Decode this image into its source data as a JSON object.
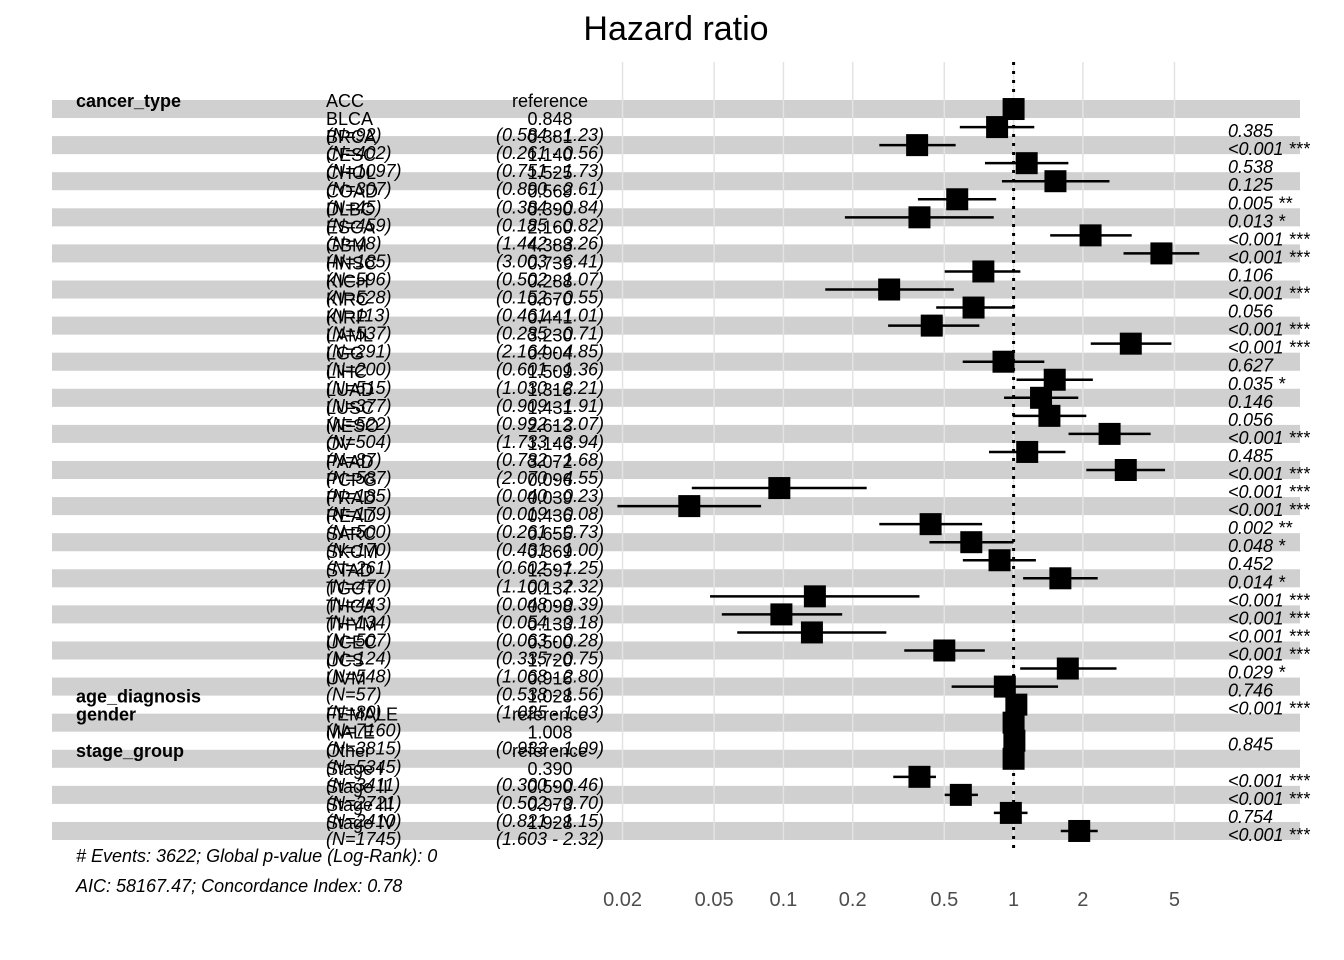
{
  "chart_data": {
    "type": "forest",
    "title": "Hazard ratio",
    "x_scale": "log",
    "xlim": [
      0.018,
      7.5
    ],
    "x_ticks": [
      "0.02",
      "0.05",
      "0.1",
      "0.2",
      "0.5",
      "1",
      "2",
      "5"
    ],
    "reference_line": 1,
    "footer": [
      "# Events: 3622; Global p-value (Log-Rank): 0",
      "AIC: 58167.47; Concordance Index: 0.78"
    ],
    "rows": [
      {
        "variable": "cancer_type",
        "level": "ACC",
        "n": "",
        "hr": null,
        "estimate": "reference",
        "ci": "",
        "lo": null,
        "hi": null,
        "p": "",
        "sig": ""
      },
      {
        "variable": "",
        "level": "BLCA",
        "n": "(N=92)",
        "hr": 0.848,
        "estimate": "0.848",
        "ci": "(0.584 - 1.23)",
        "lo": 0.584,
        "hi": 1.23,
        "p": "0.385",
        "sig": ""
      },
      {
        "variable": "",
        "level": "BRCA",
        "n": "(N=402)",
        "hr": 0.381,
        "estimate": "0.381",
        "ci": "(0.261 - 0.56)",
        "lo": 0.261,
        "hi": 0.56,
        "p": "<0.001",
        "sig": "***"
      },
      {
        "variable": "",
        "level": "CESC",
        "n": "(N=1097)",
        "hr": 1.14,
        "estimate": "1.140",
        "ci": "(0.751 - 1.73)",
        "lo": 0.751,
        "hi": 1.73,
        "p": "0.538",
        "sig": ""
      },
      {
        "variable": "",
        "level": "CHOL",
        "n": "(N=307)",
        "hr": 1.52,
        "estimate": "1.525",
        "ci": "(0.890 - 2.61)",
        "lo": 0.89,
        "hi": 2.61,
        "p": "0.125",
        "sig": ""
      },
      {
        "variable": "",
        "level": "COAD",
        "n": "(N=45)",
        "hr": 0.569,
        "estimate": "0.569",
        "ci": "(0.384 - 0.84)",
        "lo": 0.384,
        "hi": 0.84,
        "p": "0.005",
        "sig": "**"
      },
      {
        "variable": "",
        "level": "DLBC",
        "n": "(N=459)",
        "hr": 0.39,
        "estimate": "0.390",
        "ci": "(0.185 - 0.82)",
        "lo": 0.185,
        "hi": 0.82,
        "p": "0.013",
        "sig": "*"
      },
      {
        "variable": "",
        "level": "ESCA",
        "n": "(N=48)",
        "hr": 2.16,
        "estimate": "2.160",
        "ci": "(1.442 - 3.26)",
        "lo": 1.442,
        "hi": 3.26,
        "p": "<0.001",
        "sig": "***"
      },
      {
        "variable": "",
        "level": "GBM",
        "n": "(N=185)",
        "hr": 4.388,
        "estimate": "4.388",
        "ci": "(3.003 - 6.41)",
        "lo": 3.003,
        "hi": 6.41,
        "p": "<0.001",
        "sig": "***"
      },
      {
        "variable": "",
        "level": "HNSC",
        "n": "(N=596)",
        "hr": 0.739,
        "estimate": "0.739",
        "ci": "(0.502 - 1.07)",
        "lo": 0.502,
        "hi": 1.07,
        "p": "0.106",
        "sig": ""
      },
      {
        "variable": "",
        "level": "KICH",
        "n": "(N=528)",
        "hr": 0.288,
        "estimate": "0.288",
        "ci": "(0.152 - 0.55)",
        "lo": 0.152,
        "hi": 0.55,
        "p": "<0.001",
        "sig": "***"
      },
      {
        "variable": "",
        "level": "KIRC",
        "n": "(N=113)",
        "hr": 0.67,
        "estimate": "0.670",
        "ci": "(0.461 - 1.01)",
        "lo": 0.461,
        "hi": 1.01,
        "p": "0.056",
        "sig": ""
      },
      {
        "variable": "",
        "level": "KIRP",
        "n": "(N=537)",
        "hr": 0.441,
        "estimate": "0.441",
        "ci": "(0.285 - 0.71)",
        "lo": 0.285,
        "hi": 0.71,
        "p": "<0.001",
        "sig": "***"
      },
      {
        "variable": "",
        "level": "LAML",
        "n": "(N=291)",
        "hr": 3.23,
        "estimate": "3.230",
        "ci": "(2.164 - 4.85)",
        "lo": 2.164,
        "hi": 4.85,
        "p": "<0.001",
        "sig": "***"
      },
      {
        "variable": "",
        "level": "LGG",
        "n": "(N=200)",
        "hr": 0.904,
        "estimate": "0.904",
        "ci": "(0.601 - 1.36)",
        "lo": 0.601,
        "hi": 1.36,
        "p": "0.627",
        "sig": ""
      },
      {
        "variable": "",
        "level": "LIHC",
        "n": "(N=515)",
        "hr": 1.509,
        "estimate": "1.509",
        "ci": "(1.030 - 2.21)",
        "lo": 1.03,
        "hi": 2.21,
        "p": "0.035",
        "sig": "*"
      },
      {
        "variable": "",
        "level": "LUAD",
        "n": "(N=377)",
        "hr": 1.316,
        "estimate": "1.316",
        "ci": "(0.909 - 1.91)",
        "lo": 0.909,
        "hi": 1.91,
        "p": "0.146",
        "sig": ""
      },
      {
        "variable": "",
        "level": "LUSC",
        "n": "(N=522)",
        "hr": 1.431,
        "estimate": "1.431",
        "ci": "(0.992 - 2.07)",
        "lo": 0.992,
        "hi": 2.07,
        "p": "0.056",
        "sig": ""
      },
      {
        "variable": "",
        "level": "MESO",
        "n": "(N=504)",
        "hr": 2.613,
        "estimate": "2.613",
        "ci": "(1.733 - 3.94)",
        "lo": 1.733,
        "hi": 3.94,
        "p": "<0.001",
        "sig": "***"
      },
      {
        "variable": "",
        "level": "OV",
        "n": "(N=87)",
        "hr": 1.146,
        "estimate": "1.146",
        "ci": "(0.782 - 1.68)",
        "lo": 0.782,
        "hi": 1.68,
        "p": "0.485",
        "sig": ""
      },
      {
        "variable": "",
        "level": "PAAD",
        "n": "(N=587)",
        "hr": 3.072,
        "estimate": "3.072",
        "ci": "(2.070 - 4.55)",
        "lo": 2.07,
        "hi": 4.55,
        "p": "<0.001",
        "sig": "***"
      },
      {
        "variable": "",
        "level": "PCPG",
        "n": "(N=185)",
        "hr": 0.096,
        "estimate": "0.096",
        "ci": "(0.040 - 0.23)",
        "lo": 0.04,
        "hi": 0.23,
        "p": "<0.001",
        "sig": "***"
      },
      {
        "variable": "",
        "level": "PRAD",
        "n": "(N=179)",
        "hr": 0.039,
        "estimate": "0.039",
        "ci": "(0.019 - 0.08)",
        "lo": 0.019,
        "hi": 0.08,
        "p": "<0.001",
        "sig": "***"
      },
      {
        "variable": "",
        "level": "READ",
        "n": "(N=500)",
        "hr": 0.436,
        "estimate": "0.436",
        "ci": "(0.261 - 0.73)",
        "lo": 0.261,
        "hi": 0.73,
        "p": "0.002",
        "sig": "**"
      },
      {
        "variable": "",
        "level": "SARC",
        "n": "(N=170)",
        "hr": 0.655,
        "estimate": "0.655",
        "ci": "(0.431 - 1.00)",
        "lo": 0.431,
        "hi": 1.0,
        "p": "0.048",
        "sig": "*"
      },
      {
        "variable": "",
        "level": "SKCM",
        "n": "(N=261)",
        "hr": 0.869,
        "estimate": "0.869",
        "ci": "(0.602 - 1.25)",
        "lo": 0.602,
        "hi": 1.25,
        "p": "0.452",
        "sig": ""
      },
      {
        "variable": "",
        "level": "STAD",
        "n": "(N=470)",
        "hr": 1.597,
        "estimate": "1.597",
        "ci": "(1.100 - 2.32)",
        "lo": 1.1,
        "hi": 2.32,
        "p": "0.014",
        "sig": "*"
      },
      {
        "variable": "",
        "level": "TGCT",
        "n": "(N=443)",
        "hr": 0.137,
        "estimate": "0.137",
        "ci": "(0.048 - 0.39)",
        "lo": 0.048,
        "hi": 0.39,
        "p": "<0.001",
        "sig": "***"
      },
      {
        "variable": "",
        "level": "THCA",
        "n": "(N=134)",
        "hr": 0.098,
        "estimate": "0.098",
        "ci": "(0.054 - 0.18)",
        "lo": 0.054,
        "hi": 0.18,
        "p": "<0.001",
        "sig": "***"
      },
      {
        "variable": "",
        "level": "THYM",
        "n": "(N=507)",
        "hr": 0.133,
        "estimate": "0.133",
        "ci": "(0.063 - 0.28)",
        "lo": 0.063,
        "hi": 0.28,
        "p": "<0.001",
        "sig": "***"
      },
      {
        "variable": "",
        "level": "UCEC",
        "n": "(N=124)",
        "hr": 0.5,
        "estimate": "0.500",
        "ci": "(0.335 - 0.75)",
        "lo": 0.335,
        "hi": 0.75,
        "p": "<0.001",
        "sig": "***"
      },
      {
        "variable": "",
        "level": "UCS",
        "n": "(N=548)",
        "hr": 1.72,
        "estimate": "1.720",
        "ci": "(1.068 - 2.80)",
        "lo": 1.068,
        "hi": 2.8,
        "p": "0.029",
        "sig": "*"
      },
      {
        "variable": "",
        "level": "UVM",
        "n": "(N=57)",
        "hr": 0.916,
        "estimate": "0.916",
        "ci": "(0.538 - 1.56)",
        "lo": 0.538,
        "hi": 1.56,
        "p": "0.746",
        "sig": ""
      },
      {
        "variable": "age_diagnosis",
        "level": "",
        "n": "(N=80)",
        "hr": 1.028,
        "estimate": "1.028",
        "ci": "(1.025 - 1.03)",
        "lo": 1.025,
        "hi": 1.03,
        "p": "<0.001",
        "sig": "***"
      },
      {
        "variable": "gender",
        "level": "FEMALE",
        "n": "(N=7160)",
        "hr": null,
        "estimate": "reference",
        "ci": "",
        "lo": null,
        "hi": null,
        "p": "",
        "sig": ""
      },
      {
        "variable": "",
        "level": "MALE",
        "n": "(N=3815)",
        "hr": 1.008,
        "estimate": "1.008",
        "ci": "(0.933 - 1.09)",
        "lo": 0.933,
        "hi": 1.09,
        "p": "0.845",
        "sig": ""
      },
      {
        "variable": "stage_group",
        "level": "Other",
        "n": "(N=5345)",
        "hr": null,
        "estimate": "reference",
        "ci": "",
        "lo": null,
        "hi": null,
        "p": "",
        "sig": ""
      },
      {
        "variable": "",
        "level": "Stage I",
        "n": "(N=3411)",
        "hr": 0.39,
        "estimate": "0.390",
        "ci": "(0.300 - 0.46)",
        "lo": 0.3,
        "hi": 0.46,
        "p": "<0.001",
        "sig": "***"
      },
      {
        "variable": "",
        "level": "Stage II",
        "n": "(N=2721)",
        "hr": 0.59,
        "estimate": "0.590",
        "ci": "(0.502 - 0.70)",
        "lo": 0.502,
        "hi": 0.7,
        "p": "<0.001",
        "sig": "***"
      },
      {
        "variable": "",
        "level": "Stage III",
        "n": "(N=2410)",
        "hr": 0.973,
        "estimate": "0.973",
        "ci": "(0.821 - 1.15)",
        "lo": 0.821,
        "hi": 1.15,
        "p": "0.754",
        "sig": ""
      },
      {
        "variable": "",
        "level": "Stage IV",
        "n": "(N=1745)",
        "hr": 1.928,
        "estimate": "1.928",
        "ci": "(1.603 - 2.32)",
        "lo": 1.603,
        "hi": 2.32,
        "p": "<0.001",
        "sig": "***"
      }
    ]
  }
}
